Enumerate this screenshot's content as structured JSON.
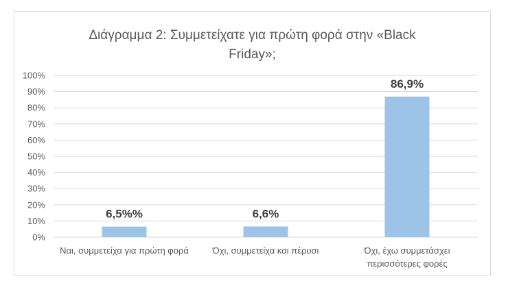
{
  "chart_data": {
    "type": "bar",
    "title_lines": [
      "Διάγραμμα 2: Συμμετείχατε για πρώτη φορά στην «Black",
      "Friday»;"
    ],
    "categories": [
      [
        "Ναι, συμμετείχα για πρώτη φορά"
      ],
      [
        "Όχι, συμμετείχα και πέρυσι"
      ],
      [
        "Όχι, έχω συμμετάσχει",
        "περισσότερες φορές"
      ]
    ],
    "values": [
      6.5,
      6.6,
      86.9
    ],
    "data_labels": [
      "6,5%%",
      "6,6%",
      "86,9%"
    ],
    "ylim": [
      0,
      100
    ],
    "yticks": [
      0,
      10,
      20,
      30,
      40,
      50,
      60,
      70,
      80,
      90,
      100
    ],
    "ytick_labels": [
      "0%",
      "10%",
      "20%",
      "30%",
      "40%",
      "50%",
      "60%",
      "70%",
      "80%",
      "90%",
      "100%"
    ],
    "grid": true,
    "bar_color": "#9dc3e6",
    "grid_color": "#d9d9d9"
  }
}
